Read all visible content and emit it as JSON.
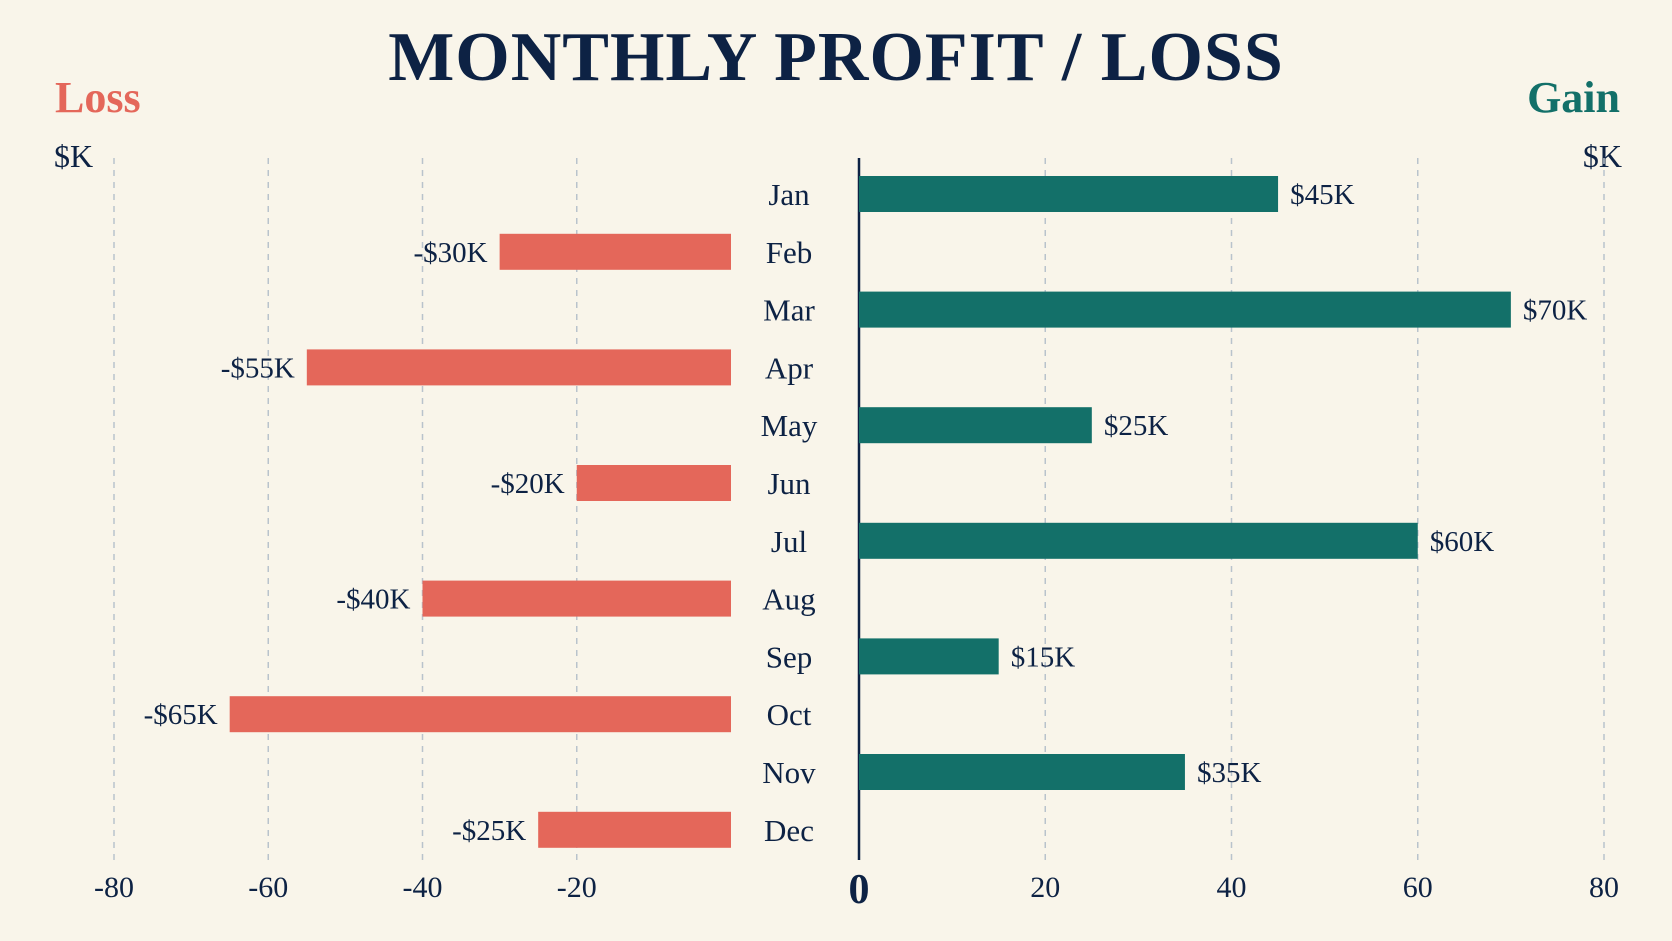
{
  "chart_data": {
    "type": "bar",
    "orientation": "horizontal-diverging",
    "title": "MONTHLY PROFIT / LOSS",
    "left_label": "Loss",
    "right_label": "Gain",
    "left_unit": "$K",
    "right_unit": "$K",
    "categories": [
      "Jan",
      "Feb",
      "Mar",
      "Apr",
      "May",
      "Jun",
      "Jul",
      "Aug",
      "Sep",
      "Oct",
      "Nov",
      "Dec"
    ],
    "values": [
      45,
      -30,
      70,
      -55,
      25,
      -20,
      60,
      -40,
      15,
      -65,
      35,
      -25
    ],
    "value_labels": [
      "$45K",
      "-$30K",
      "$70K",
      "-$55K",
      "$25K",
      "-$20K",
      "$60K",
      "-$40K",
      "$15K",
      "-$65K",
      "$35K",
      "-$25K"
    ],
    "left_axis": {
      "range": [
        -80,
        0
      ],
      "ticks": [
        "-80",
        "-60",
        "-40",
        "-20"
      ]
    },
    "right_axis": {
      "range": [
        0,
        80
      ],
      "ticks": [
        "0",
        "20",
        "40",
        "60",
        "80"
      ]
    },
    "grid": true,
    "colors": {
      "loss": "#e4675a",
      "gain": "#137069",
      "text": "#0d2244",
      "grid": "#b9c3cc",
      "background": "#f9f5ea"
    }
  }
}
